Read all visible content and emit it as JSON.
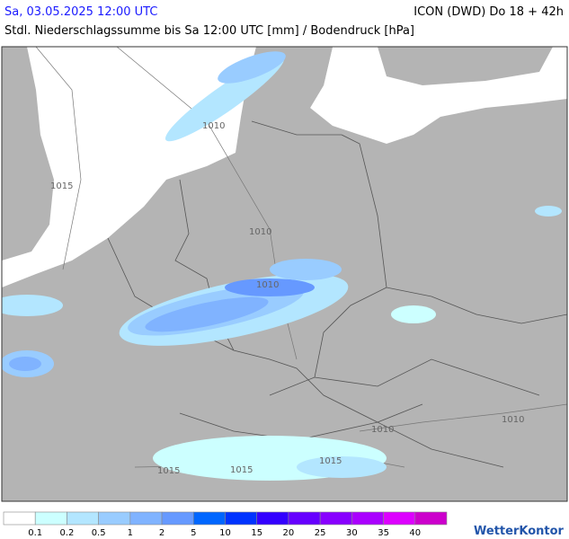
{
  "header": {
    "date": "Sa, 03.05.2025 12:00 UTC",
    "model": "ICON (DWD) Do 18 + 42h",
    "subtitle": "Stdl. Niederschlagssumme bis Sa 12:00 UTC [mm] / Bodendruck [hPa]"
  },
  "isobars": [
    "1010",
    "1015",
    "1010",
    "1010",
    "1010",
    "1010",
    "1015",
    "1015",
    "1015"
  ],
  "legend": {
    "labels": [
      0.1,
      0.2,
      0.5,
      1,
      2,
      5,
      10,
      15,
      20,
      25,
      30,
      35,
      40
    ],
    "colors": [
      "#ffffff",
      "#ccffff",
      "#b3e6ff",
      "#99ccff",
      "#80b3ff",
      "#6699ff",
      "#0066ff",
      "#0033ff",
      "#3300ff",
      "#6600ff",
      "#8800ff",
      "#aa00ff",
      "#dd00ff",
      "#cc00cc"
    ]
  },
  "logo": "WetterKontor"
}
